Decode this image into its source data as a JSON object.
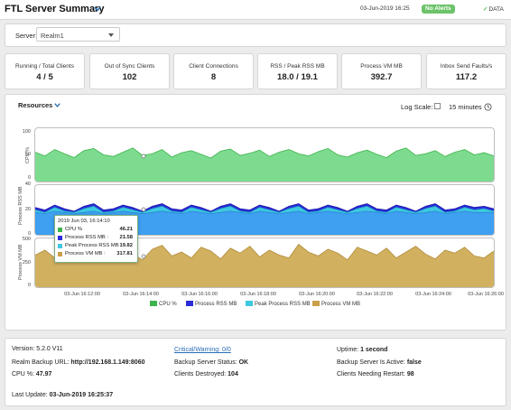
{
  "header": {
    "title": "FTL Server Summary",
    "timestamp": "03-Jun-2019 16:25",
    "alert_badge": "No Alerts",
    "data_label": "DATA"
  },
  "server": {
    "label": "Server:",
    "value": "Realm1"
  },
  "kpis": [
    {
      "label": "Running / Total Clients",
      "value": "4 / 5"
    },
    {
      "label": "Out of Sync Clients",
      "value": "102"
    },
    {
      "label": "Client Connections",
      "value": "8"
    },
    {
      "label": "RSS / Peak RSS MB",
      "value": "18.0 / 19.1"
    },
    {
      "label": "Process VM MB",
      "value": "392.7"
    },
    {
      "label": "Inbox Send Faults/s",
      "value": "117.2"
    }
  ],
  "resources": {
    "title": "Resources",
    "log_scale_label": "Log Scale:",
    "log_scale_checked": false,
    "time_range": "15 minutes"
  },
  "chart_data": {
    "type": "area",
    "x_ticks": [
      "03-Jun 16:12:00",
      "03-Jun 16:14:00",
      "03-Jun 16:16:00",
      "03-Jun 16:18:00",
      "03-Jun 16:20:00",
      "03-Jun 16:22:00",
      "03-Jun 16:24:00",
      "03-Jun 16:26:00"
    ],
    "panels": [
      {
        "ylabel": "CPU %",
        "ylim": [
          0,
          100
        ],
        "yticks": [
          "100",
          "50",
          "0"
        ],
        "series": [
          {
            "name": "CPU %",
            "color": "#7ddb8f",
            "values": [
              55,
              48,
              60,
              52,
              45,
              58,
              62,
              50,
              47,
              55,
              63,
              49,
              52,
              60,
              46,
              54,
              58,
              51,
              44,
              57,
              61,
              49,
              53,
              59,
              47,
              55,
              60,
              52,
              48,
              56,
              62,
              50,
              46,
              54,
              59,
              51,
              45,
              57,
              63,
              49,
              52,
              58,
              47,
              55,
              60,
              50,
              54,
              48
            ]
          }
        ]
      },
      {
        "ylabel": "Process RSS MB",
        "ylim": [
          0,
          40
        ],
        "yticks": [
          "40",
          "20",
          "0"
        ],
        "series": [
          {
            "name": "Process RSS MB",
            "color": "#2b2bd9",
            "values": [
              22,
              20,
              24,
              21,
              19,
              23,
              25,
              20,
              21,
              24,
              22,
              19,
              23,
              25,
              21,
              20,
              24,
              22,
              19,
              23,
              25,
              21,
              20,
              24,
              22,
              19,
              23,
              25,
              20,
              21,
              24,
              22,
              19,
              23,
              25,
              21,
              20,
              24,
              22,
              19,
              23,
              25,
              20,
              21,
              24,
              22,
              23,
              21
            ]
          },
          {
            "name": "Peak Process RSS MB",
            "color": "#3ec9e0",
            "values": [
              20,
              18,
              22,
              19,
              18,
              21,
              23,
              18,
              19,
              22,
              20,
              18,
              21,
              23,
              19,
              18,
              22,
              20,
              18,
              21,
              23,
              19,
              18,
              22,
              20,
              18,
              21,
              23,
              18,
              19,
              22,
              20,
              18,
              21,
              23,
              19,
              18,
              22,
              20,
              18,
              21,
              23,
              18,
              19,
              22,
              20,
              21,
              19
            ]
          },
          {
            "name": "Process RSS",
            "color": "#3f9ff0",
            "values": [
              18,
              17,
              19,
              18,
              17,
              18,
              19,
              17,
              18,
              19,
              18,
              17,
              18,
              19,
              18,
              17,
              19,
              18,
              17,
              18,
              19,
              18,
              17,
              19,
              18,
              17,
              18,
              19,
              17,
              18,
              19,
              18,
              17,
              18,
              19,
              18,
              17,
              19,
              18,
              17,
              18,
              19,
              17,
              18,
              19,
              18,
              18,
              18
            ]
          }
        ]
      },
      {
        "ylabel": "Process VM MB",
        "ylim": [
          0,
          500
        ],
        "yticks": [
          "500",
          "250",
          "0"
        ],
        "series": [
          {
            "name": "Process VM MB",
            "color": "#d1b060",
            "values": [
              330,
              380,
              300,
              410,
              350,
              290,
              420,
              360,
              310,
              400,
              340,
              280,
              390,
              430,
              320,
              360,
              300,
              410,
              370,
              290,
              400,
              350,
              420,
              310,
              380,
              330,
              300,
              440,
              360,
              320,
              390,
              350,
              280,
              410,
              370,
              330,
              400,
              300,
              360,
              420,
              340,
              290,
              380,
              350,
              410,
              320,
              300,
              370
            ]
          }
        ]
      }
    ],
    "legend": [
      "CPU %",
      "Process RSS MB",
      "Peak Process RSS MB",
      "Process VM MB"
    ],
    "tooltip": {
      "date": "2019 Jun 03, 16:14:10",
      "rows": [
        {
          "name": "CPU %",
          "value": "46.21",
          "color": "#3cb44b"
        },
        {
          "name": "Process RSS MB :",
          "value": "21.58",
          "color": "#2b2bd9"
        },
        {
          "name": "Peak Process RSS MB :",
          "value": "19.82",
          "color": "#3ec9e0"
        },
        {
          "name": "Process VM MB :",
          "value": "317.81",
          "color": "#c9a048"
        }
      ]
    }
  },
  "info": {
    "version": "Version: 5.2.0 V11",
    "backup_url_label": "Realm Backup URL:",
    "backup_url": "http://192.168.1.149:8060",
    "cpu_label": "CPU %:",
    "cpu_value": "47.97",
    "critical_warning": "Critical/Warning: 0/0",
    "backup_status_label": "Backup Server Status:",
    "backup_status": "OK",
    "clients_destroyed_label": "Clients Destroyed:",
    "clients_destroyed": "104",
    "uptime_label": "Uptime:",
    "uptime": "1 second",
    "backup_active_label": "Backup Server Is Active:",
    "backup_active": "false",
    "clients_restart_label": "Clients Needing Restart:",
    "clients_restart": "98",
    "last_update_label": "Last Update:",
    "last_update": "03-Jun-2019 16:25:37"
  }
}
